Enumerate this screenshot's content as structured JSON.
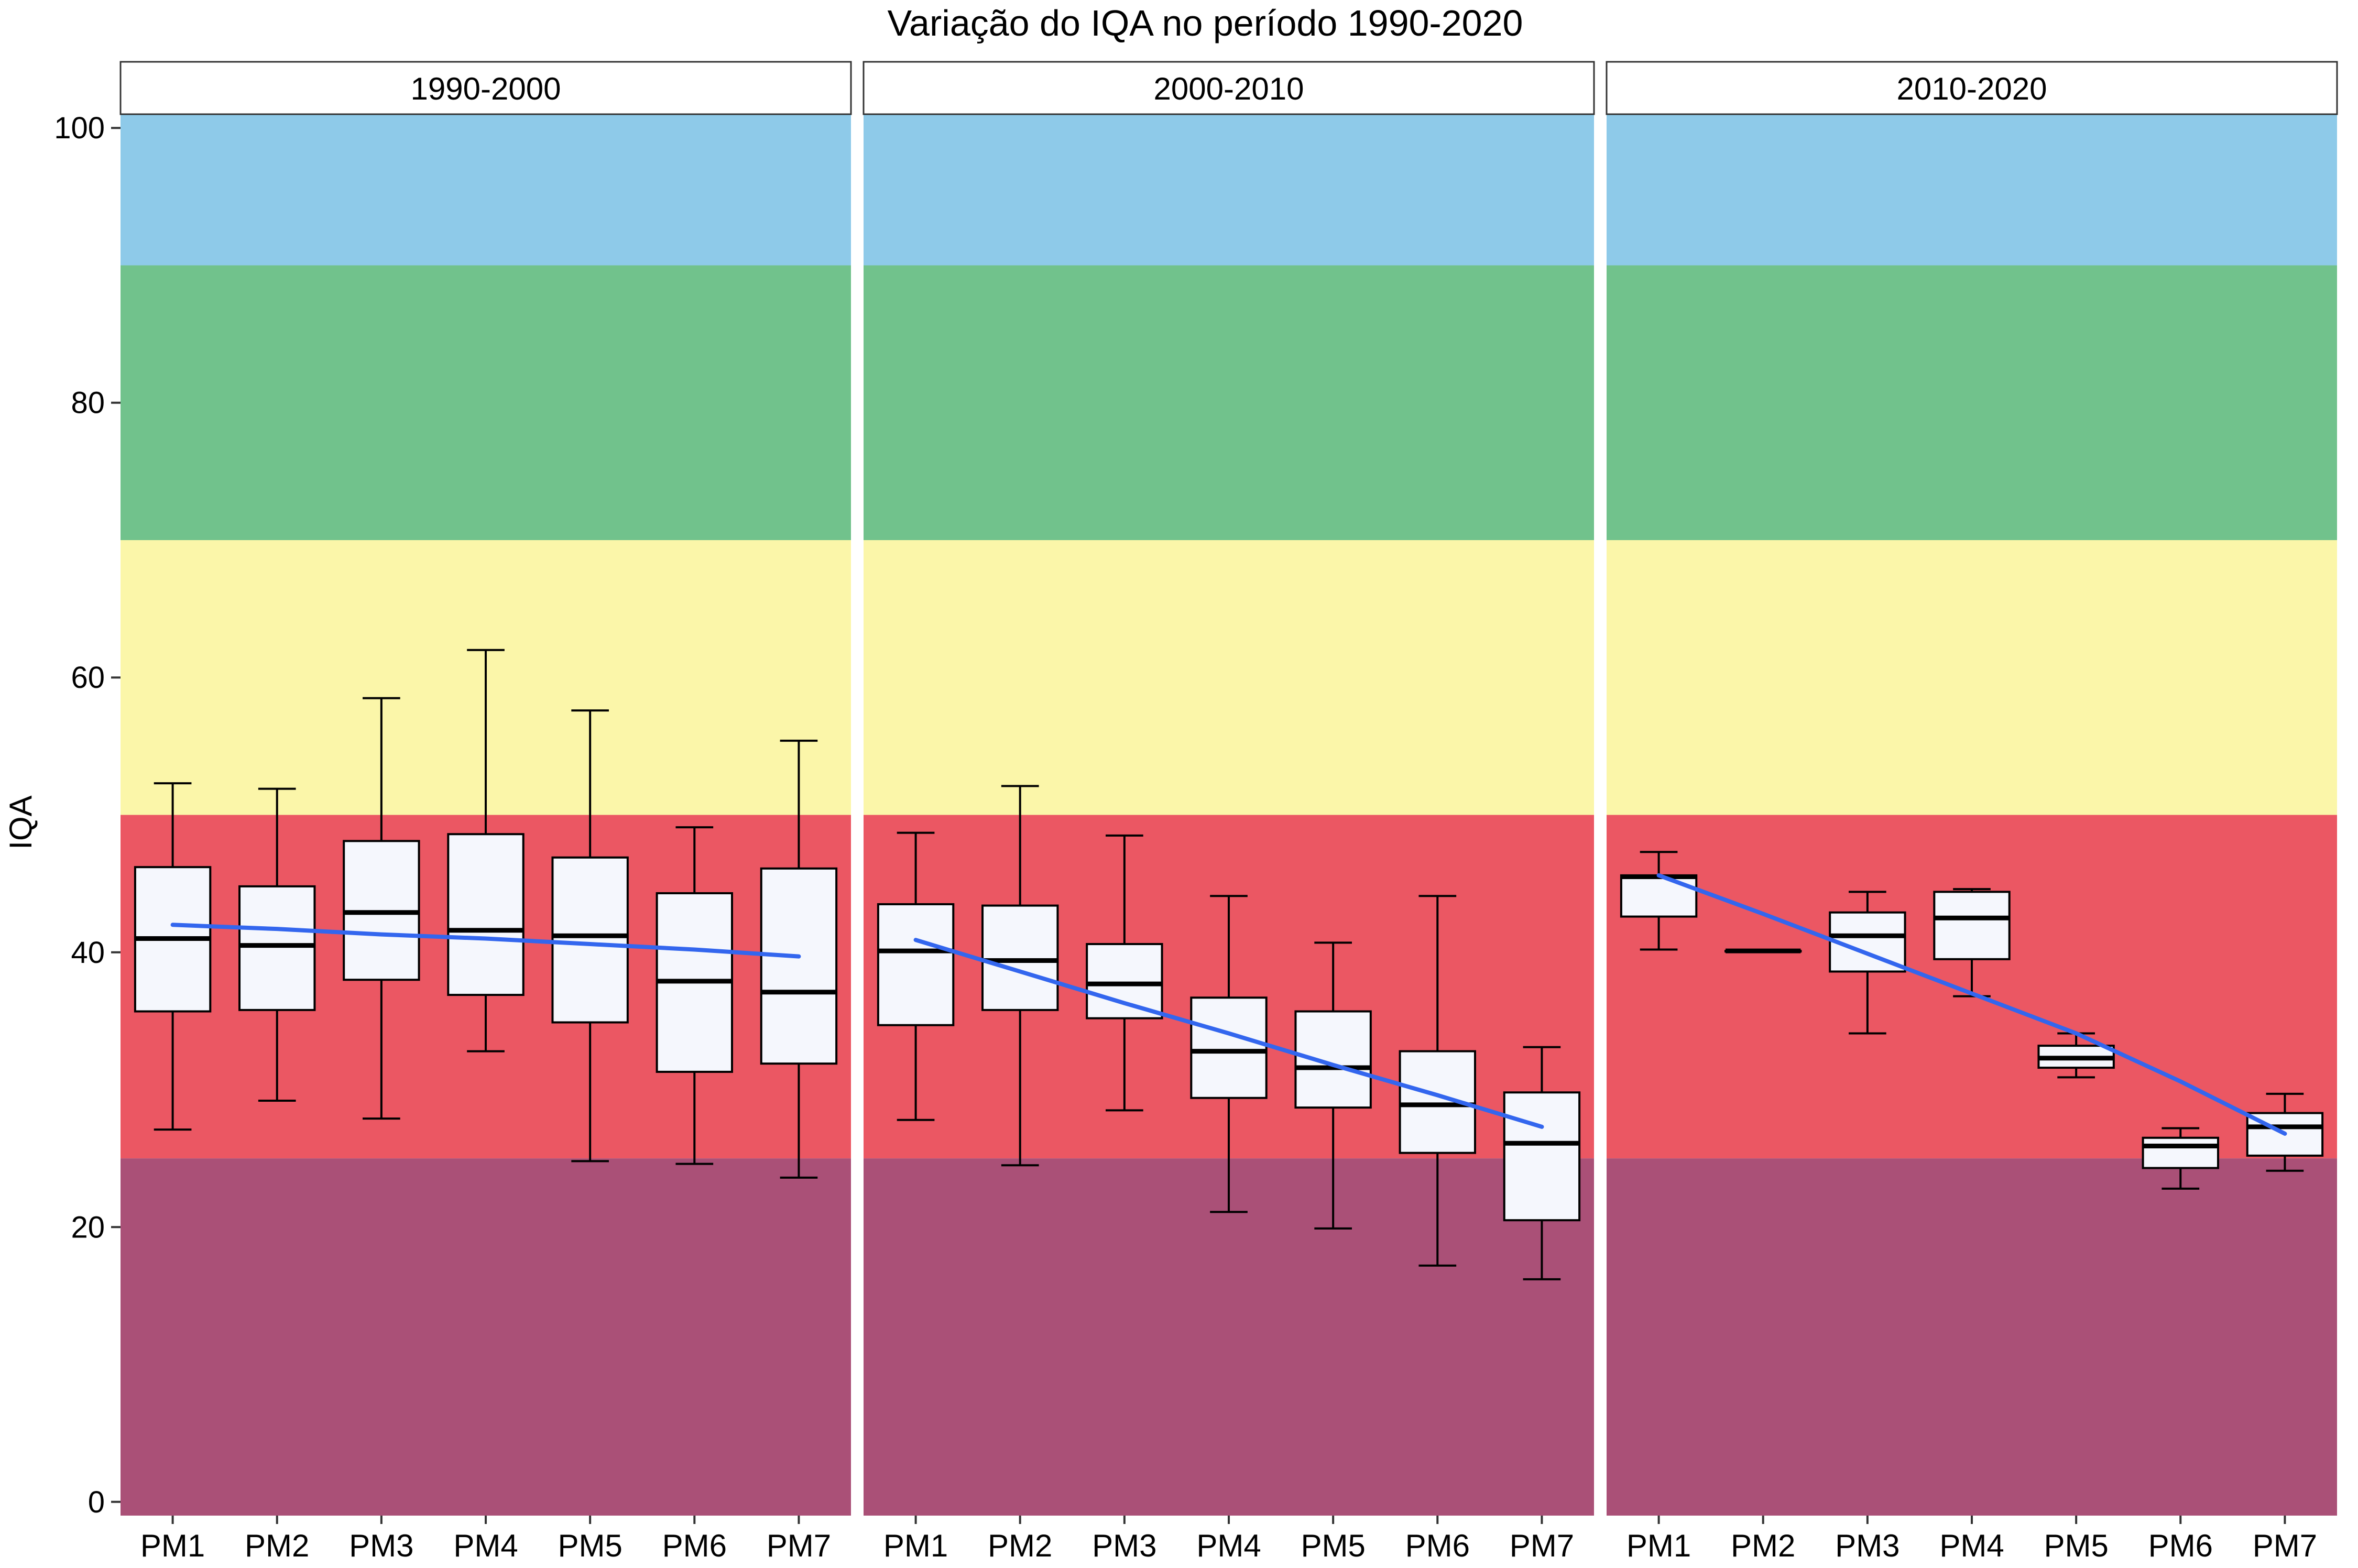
{
  "chart_data": {
    "type": "boxplot",
    "title": "Variação do IQA no período 1990-2020",
    "ylabel": "IQA",
    "xlabel": "",
    "ylim": [
      -1,
      101
    ],
    "yticks": [
      0,
      20,
      40,
      60,
      80,
      100
    ],
    "categories": [
      "PM1",
      "PM2",
      "PM3",
      "PM4",
      "PM5",
      "PM6",
      "PM7"
    ],
    "bands": [
      {
        "from": 90,
        "to": 101,
        "color": "#8ecae9"
      },
      {
        "from": 70,
        "to": 90,
        "color": "#71c28c"
      },
      {
        "from": 50,
        "to": 70,
        "color": "#fbf6a9"
      },
      {
        "from": 25,
        "to": 50,
        "color": "#eb5763"
      },
      {
        "from": -1,
        "to": 25,
        "color": "#aa5077"
      }
    ],
    "trend_color": "#3366ee",
    "box_fill": "#f5f7fd",
    "panels": [
      {
        "label": "1990-2000",
        "boxes": [
          {
            "min": 27.1,
            "q1": 35.7,
            "median": 41.0,
            "q3": 46.2,
            "max": 52.3
          },
          {
            "min": 29.2,
            "q1": 35.8,
            "median": 40.5,
            "q3": 44.8,
            "max": 51.9
          },
          {
            "min": 27.9,
            "q1": 38.0,
            "median": 42.9,
            "q3": 48.1,
            "max": 58.5
          },
          {
            "min": 32.8,
            "q1": 36.9,
            "median": 41.6,
            "q3": 48.6,
            "max": 62.0
          },
          {
            "min": 24.8,
            "q1": 34.9,
            "median": 41.2,
            "q3": 46.9,
            "max": 57.6
          },
          {
            "min": 24.6,
            "q1": 31.3,
            "median": 37.9,
            "q3": 44.3,
            "max": 49.1
          },
          {
            "min": 23.6,
            "q1": 31.9,
            "median": 37.1,
            "q3": 46.1,
            "max": 55.4
          }
        ],
        "trend": [
          42.0,
          41.7,
          41.3,
          41.0,
          40.6,
          40.2,
          39.7
        ]
      },
      {
        "label": "2000-2010",
        "boxes": [
          {
            "min": 27.8,
            "q1": 34.7,
            "median": 40.1,
            "q3": 43.5,
            "max": 48.7
          },
          {
            "min": 24.5,
            "q1": 35.8,
            "median": 39.4,
            "q3": 43.4,
            "max": 52.1
          },
          {
            "min": 28.5,
            "q1": 35.2,
            "median": 37.7,
            "q3": 40.6,
            "max": 48.5
          },
          {
            "min": 21.1,
            "q1": 29.4,
            "median": 32.8,
            "q3": 36.7,
            "max": 44.1
          },
          {
            "min": 19.9,
            "q1": 28.7,
            "median": 31.6,
            "q3": 35.7,
            "max": 40.7
          },
          {
            "min": 17.2,
            "q1": 25.4,
            "median": 28.9,
            "q3": 32.8,
            "max": 44.1
          },
          {
            "min": 16.2,
            "q1": 20.5,
            "median": 26.1,
            "q3": 29.8,
            "max": 33.1
          }
        ],
        "trend": [
          40.9,
          38.6,
          36.3,
          34.1,
          31.8,
          29.6,
          27.3
        ]
      },
      {
        "label": "2010-2020",
        "boxes": [
          {
            "min": 40.2,
            "q1": 42.6,
            "median": 45.5,
            "q3": 45.6,
            "max": 47.3
          },
          {
            "min": 40.1,
            "q1": 40.1,
            "median": 40.1,
            "q3": 40.1,
            "max": 40.1
          },
          {
            "min": 34.1,
            "q1": 38.6,
            "median": 41.2,
            "q3": 42.9,
            "max": 44.4
          },
          {
            "min": 36.8,
            "q1": 39.5,
            "median": 42.5,
            "q3": 44.4,
            "max": 44.6
          },
          {
            "min": 30.9,
            "q1": 31.6,
            "median": 32.3,
            "q3": 33.2,
            "max": 34.1
          },
          {
            "min": 22.8,
            "q1": 24.3,
            "median": 25.9,
            "q3": 26.5,
            "max": 27.2
          },
          {
            "min": 24.1,
            "q1": 25.2,
            "median": 27.3,
            "q3": 28.3,
            "max": 29.7
          }
        ],
        "trend": [
          45.6,
          42.8,
          39.9,
          37.0,
          34.1,
          30.6,
          26.8
        ]
      }
    ]
  }
}
